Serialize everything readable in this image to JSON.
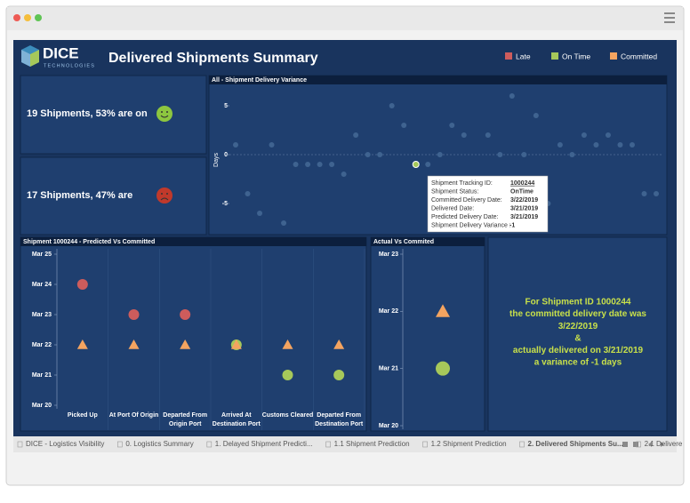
{
  "header": {
    "logo": "DICE",
    "logo_sub": "TECHNOLOGIES",
    "title": "Delivered Shipments Summary"
  },
  "kpis": [
    {
      "text": "19 Shipments, 53% are on",
      "color": "#8dc63f",
      "mood": "happy"
    },
    {
      "text": "17 Shipments, 47% are",
      "color": "#c0392b",
      "mood": "sad"
    }
  ],
  "chart_data": [
    {
      "type": "scatter",
      "title": "All - Shipment Delivery Variance",
      "y_label": "Days",
      "values": [
        1,
        -4,
        -6,
        1,
        -7,
        -1,
        -1,
        -1,
        -1,
        -2,
        2,
        0,
        0,
        5,
        3,
        -1,
        -1,
        0,
        3,
        2,
        -5,
        2,
        0,
        6,
        0,
        4,
        -5,
        1,
        0,
        2,
        1,
        2,
        1,
        1,
        -4,
        -4
      ],
      "color": "#3f6390",
      "highlight_index": 15,
      "highlight_color": "#a6c85a",
      "ylim": [
        -8,
        7
      ],
      "yticks": [
        5,
        0,
        -5
      ],
      "zero_line": true
    },
    {
      "type": "dot",
      "title": "Shipment 1000244 - Predicted Vs Committed",
      "categories": [
        "Picked Up",
        "At Port Of Origin",
        "Departed From Origin Port",
        "Arrived At Destination Port",
        "Customs Cleared",
        "Departed From Destination Port"
      ],
      "series": [
        {
          "name": "Late",
          "color": "#cd5c5c",
          "marker": "circle",
          "values": [
            24,
            23,
            23,
            null,
            null,
            null
          ]
        },
        {
          "name": "On Time",
          "color": "#a6c85a",
          "marker": "circle",
          "values": [
            null,
            null,
            null,
            22,
            21,
            21
          ]
        },
        {
          "name": "Committed",
          "color": "#f4a460",
          "marker": "triangle",
          "values": [
            22,
            22,
            22,
            22,
            22,
            22
          ]
        }
      ],
      "ylim": [
        20,
        25
      ],
      "yticks": [
        {
          "value": 25,
          "label": "Mar 25"
        },
        {
          "value": 24,
          "label": "Mar 24"
        },
        {
          "value": 23,
          "label": "Mar 23"
        },
        {
          "value": 22,
          "label": "Mar 22"
        },
        {
          "value": 21,
          "label": "Mar 21"
        },
        {
          "value": 20,
          "label": "Mar 20"
        }
      ]
    },
    {
      "type": "dot",
      "title": "Actual Vs Commited",
      "categories": [
        null
      ],
      "series": [
        {
          "color": "#f4a460",
          "marker": "triangle",
          "values": [
            22
          ]
        },
        {
          "color": "#a6c85a",
          "marker": "circle",
          "values": [
            21
          ]
        }
      ],
      "ylim": [
        20,
        23
      ],
      "yticks": [
        {
          "value": 23,
          "label": "Mar 23"
        },
        {
          "value": 22,
          "label": "Mar 22"
        },
        {
          "value": 21,
          "label": "Mar 21"
        },
        {
          "value": 20,
          "label": "Mar 20"
        }
      ]
    }
  ],
  "tooltip": {
    "rows": [
      [
        "Shipment Tracking ID:",
        "1000244"
      ],
      [
        "Shipment Status:",
        "OnTime"
      ],
      [
        "Committed Delivery Date:",
        "3/22/2019"
      ],
      [
        "Delivered Date:",
        "3/21/2019"
      ],
      [
        "Predicted Delivery Date:",
        "3/21/2019"
      ],
      [
        "Shipment Delivery Variance :",
        "-1"
      ]
    ]
  },
  "summary": {
    "lines": [
      "For Shipment ID 1000244",
      "the committed delivery date was",
      "3/22/2019",
      "&",
      "actually delivered on  3/21/2019",
      "a variance of -1 days"
    ],
    "color": "#c8e04a"
  },
  "tabs": [
    "DICE - Logistics Visibility",
    "0. Logistics Summary",
    "1. Delayed Shipment Predicti...",
    "1.1 Shipment Prediction",
    "1.2 Shipment Prediction",
    "2. Delivered Shipments Su...",
    "2.1 Delivere"
  ],
  "active_tab": 5
}
